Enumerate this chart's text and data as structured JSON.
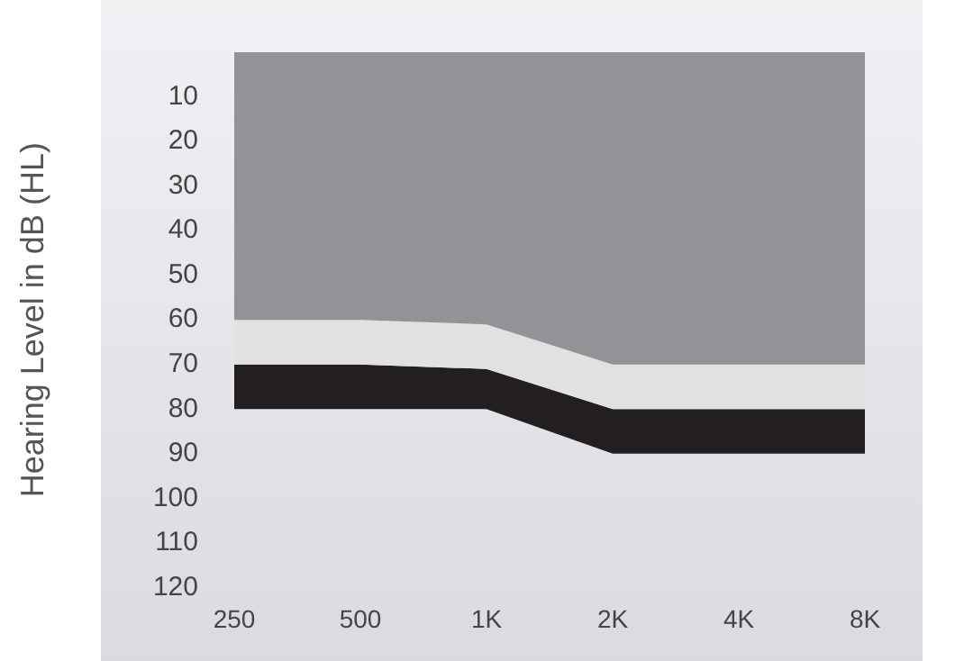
{
  "chart_data": {
    "type": "area",
    "stacked": true,
    "ylabel": "Hearing Level in dB (HL)",
    "categories": [
      "250",
      "500",
      "1K",
      "2K",
      "4K",
      "8K"
    ],
    "series": [
      {
        "color": "#929396",
        "values": [
          60,
          60,
          61,
          70,
          70,
          70
        ]
      },
      {
        "color": "#e1e1e1",
        "values": [
          10,
          10,
          10,
          10,
          10,
          10
        ]
      },
      {
        "color": "#231f20",
        "values": [
          10,
          10,
          9,
          10,
          10,
          10
        ]
      }
    ],
    "ylim": [
      120,
      0
    ],
    "yticks": [
      10,
      20,
      30,
      40,
      50,
      60,
      70,
      80,
      90,
      100,
      110,
      120
    ],
    "grid": false,
    "legend": false
  }
}
